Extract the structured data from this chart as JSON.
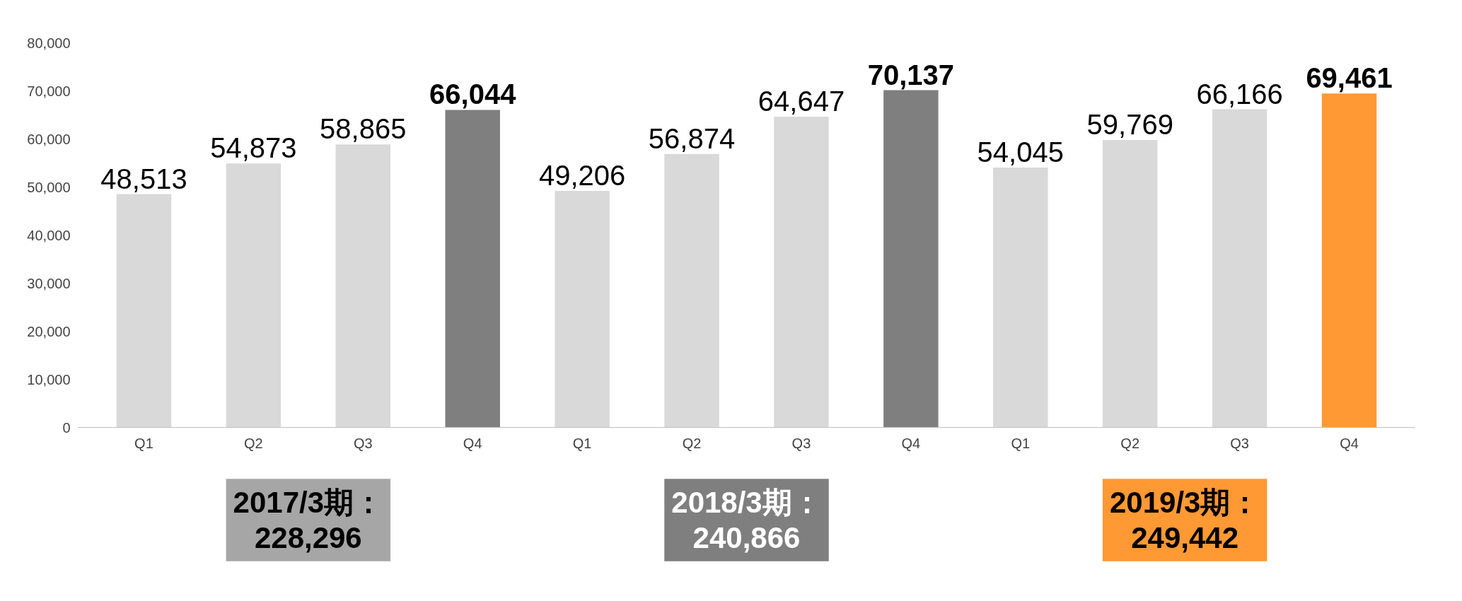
{
  "chart_data": {
    "type": "bar",
    "categories": [
      "Q1",
      "Q2",
      "Q3",
      "Q4",
      "Q1",
      "Q2",
      "Q3",
      "Q4",
      "Q1",
      "Q2",
      "Q3",
      "Q4"
    ],
    "values": [
      48513,
      54873,
      58865,
      66044,
      49206,
      56874,
      64647,
      70137,
      54045,
      59769,
      66166,
      69461
    ],
    "colors": [
      "#d9d9d9",
      "#d9d9d9",
      "#d9d9d9",
      "#7f7f7f",
      "#d9d9d9",
      "#d9d9d9",
      "#d9d9d9",
      "#7f7f7f",
      "#d9d9d9",
      "#d9d9d9",
      "#d9d9d9",
      "#ff9933"
    ],
    "ylim": [
      0,
      80000
    ],
    "yticks": [
      {
        "value": 0,
        "label": "0"
      },
      {
        "value": 10000,
        "label": "10,000"
      },
      {
        "value": 20000,
        "label": "20,000"
      },
      {
        "value": 30000,
        "label": "30,000"
      },
      {
        "value": 40000,
        "label": "40,000"
      },
      {
        "value": 50000,
        "label": "50,000"
      },
      {
        "value": 60000,
        "label": "60,000"
      },
      {
        "value": 70000,
        "label": "70,000"
      },
      {
        "value": 80000,
        "label": "80,000"
      }
    ],
    "value_labels": [
      "48,513",
      "54,873",
      "58,865",
      "66,044",
      "49,206",
      "56,874",
      "64,647",
      "70,137",
      "54,045",
      "59,769",
      "66,166",
      "69,461"
    ],
    "grid": false,
    "annotations": [
      "2017/3期：\n228,296",
      "2018/3期：\n240,866",
      "2019/3期：\n249,442"
    ]
  }
}
